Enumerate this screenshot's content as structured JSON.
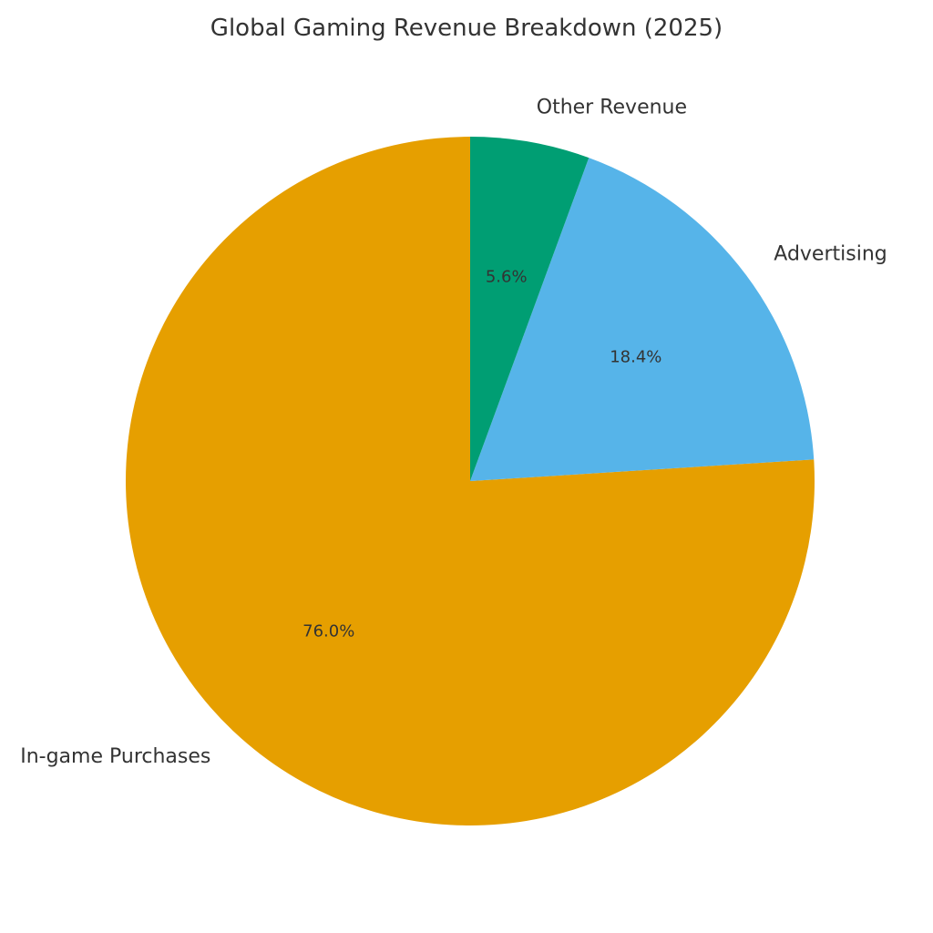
{
  "chart_data": {
    "type": "pie",
    "title": "Global Gaming Revenue Breakdown (2025)",
    "start_angle_deg": 90,
    "direction": "counterclockwise",
    "slices": [
      {
        "label": "In-game Purchases",
        "value": 76.0,
        "pct_label": "76.0%",
        "color": "#E69F00"
      },
      {
        "label": "Advertising",
        "value": 18.4,
        "pct_label": "18.4%",
        "color": "#56B4E9"
      },
      {
        "label": "Other Revenue",
        "value": 5.6,
        "pct_label": "5.6%",
        "color": "#009E73"
      }
    ]
  }
}
